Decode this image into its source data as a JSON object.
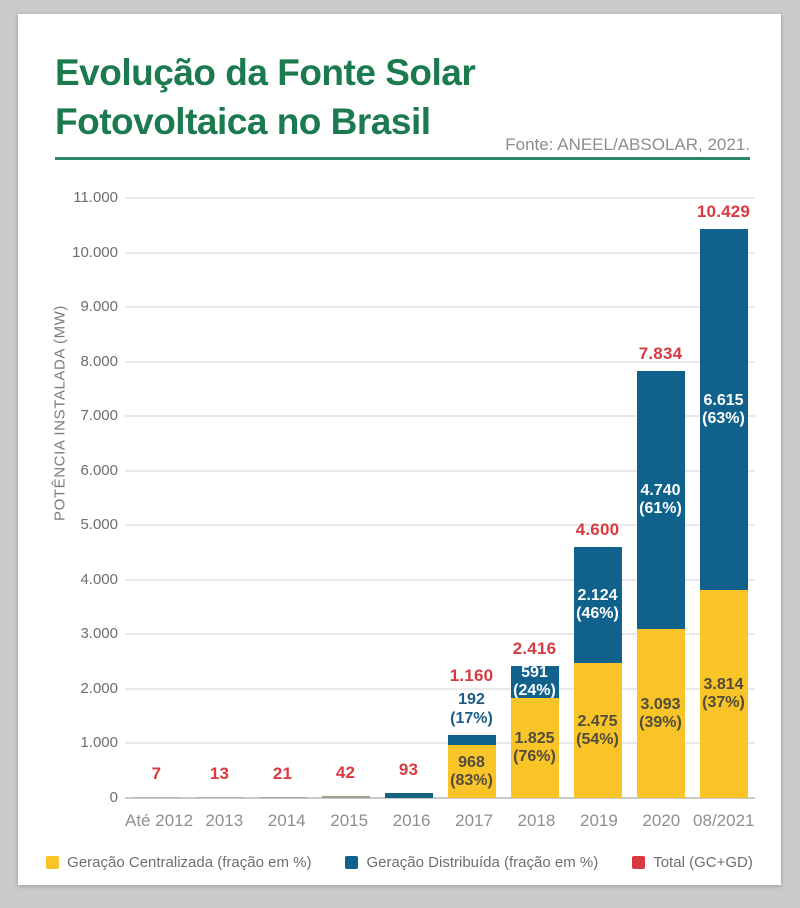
{
  "header": {
    "title_line1": "Evolução da Fonte Solar",
    "title_line2": "Fotovoltaica no Brasil",
    "source": "Fonte: ANEEL/ABSOLAR, 2021.",
    "title_color": "#1b7a4e"
  },
  "chart_data": {
    "type": "bar",
    "stacked": true,
    "title": "Evolução da Fonte Solar Fotovoltaica no Brasil",
    "ylabel": "POTÊNCIA INSTALADA (MW)",
    "ylim": [
      0,
      11000
    ],
    "ytick_step": 1000,
    "ytick_labels": [
      "0",
      "1.000",
      "2.000",
      "3.000",
      "4.000",
      "5.000",
      "6.000",
      "7.000",
      "8.000",
      "9.000",
      "10.000",
      "11.000"
    ],
    "grid": true,
    "legend_position": "bottom",
    "categories": [
      "Até 2012",
      "2013",
      "2014",
      "2015",
      "2016",
      "2017",
      "2018",
      "2019",
      "2020",
      "08/2021"
    ],
    "series": [
      {
        "name": "Geração Centralizada (fração em %)",
        "color": "#f8c427",
        "values": [
          null,
          null,
          null,
          null,
          null,
          968,
          1825,
          2475,
          3093,
          3814
        ]
      },
      {
        "name": "Geração Distribuída (fração em %)",
        "color": "#10618c",
        "values": [
          null,
          null,
          null,
          null,
          null,
          192,
          591,
          2124,
          4740,
          6615
        ]
      }
    ],
    "totals": {
      "name": "Total (GC+GD)",
      "color": "#d93940",
      "values": [
        7,
        13,
        21,
        42,
        93,
        1160,
        2416,
        4600,
        7834,
        10429
      ]
    },
    "bars": [
      {
        "category": "Até 2012",
        "total": 7,
        "total_label": "7",
        "color": "#b7b7ad"
      },
      {
        "category": "2013",
        "total": 13,
        "total_label": "13",
        "color": "#b1b1a6"
      },
      {
        "category": "2014",
        "total": 21,
        "total_label": "21",
        "color": "#a7a89a"
      },
      {
        "category": "2015",
        "total": 42,
        "total_label": "42",
        "color": "#9ba18c"
      },
      {
        "category": "2016",
        "total": 93,
        "total_label": "93",
        "color": "#13627e"
      },
      {
        "category": "2017",
        "total": 1160,
        "total_label": "1.160",
        "gc": 968,
        "gc_label": "968",
        "gc_pct": "(83%)",
        "gd": 192,
        "gd_label": "192",
        "gd_pct": "(17%)",
        "gd_label_position": "outside"
      },
      {
        "category": "2018",
        "total": 2416,
        "total_label": "2.416",
        "gc": 1825,
        "gc_label": "1.825",
        "gc_pct": "(76%)",
        "gd": 591,
        "gd_label": "591",
        "gd_pct": "(24%)",
        "gd_label_position": "inside"
      },
      {
        "category": "2019",
        "total": 4600,
        "total_label": "4.600",
        "gc": 2475,
        "gc_label": "2.475",
        "gc_pct": "(54%)",
        "gd": 2124,
        "gd_label": "2.124",
        "gd_pct": "(46%)",
        "gd_label_position": "inside"
      },
      {
        "category": "2020",
        "total": 7834,
        "total_label": "7.834",
        "gc": 3093,
        "gc_label": "3.093",
        "gc_pct": "(39%)",
        "gd": 4740,
        "gd_label": "4.740",
        "gd_pct": "(61%)",
        "gd_label_position": "inside"
      },
      {
        "category": "08/2021",
        "total": 10429,
        "total_label": "10.429",
        "gc": 3814,
        "gc_label": "3.814",
        "gc_pct": "(37%)",
        "gd": 6615,
        "gd_label": "6.615",
        "gd_pct": "(63%)",
        "gd_label_position": "inside"
      }
    ],
    "legend": [
      {
        "label": "Geração Centralizada (fração em %)",
        "color": "#f8c427"
      },
      {
        "label": "Geração Distribuída (fração em %)",
        "color": "#10618c"
      },
      {
        "label": "Total (GC+GD)",
        "color": "#d93940"
      }
    ]
  }
}
